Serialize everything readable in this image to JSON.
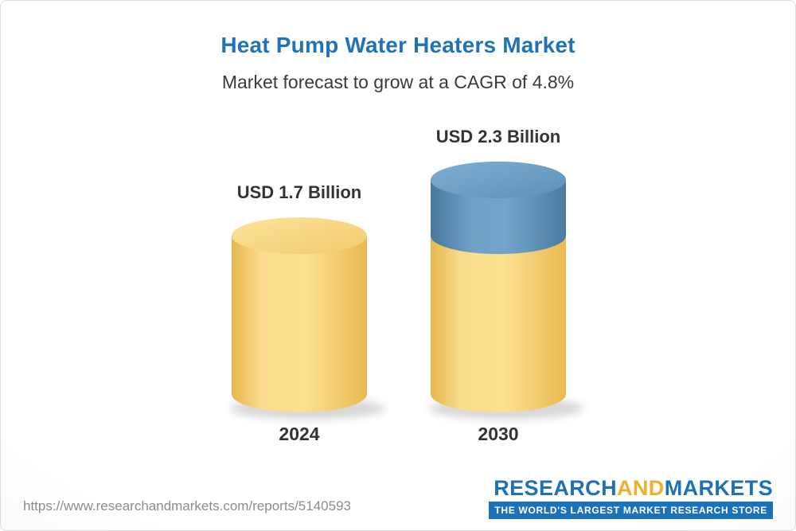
{
  "header": {
    "title": "Heat Pump Water Heaters Market",
    "subtitle": "Market forecast to grow at a CAGR of 4.8%"
  },
  "chart_data": {
    "type": "bar",
    "variant": "3d-cylinder-column",
    "title": "Heat Pump Water Heaters Market",
    "subtitle": "Market forecast to grow at a CAGR of 4.8%",
    "cagr_percent": 4.8,
    "unit": "USD Billion",
    "categories": [
      "2024",
      "2030"
    ],
    "values": [
      1.7,
      2.3
    ],
    "value_labels": [
      "USD 1.7 Billion",
      "USD 2.3 Billion"
    ],
    "segments": [
      [
        {
          "name": "market-size-2024",
          "value": 1.7,
          "color_key": "gold"
        }
      ],
      [
        {
          "name": "base-2024-level",
          "value": 1.7,
          "color_key": "gold"
        },
        {
          "name": "growth-to-2030",
          "value": 0.6,
          "color_key": "blue"
        }
      ]
    ],
    "colors": {
      "gold": "#F5CE63",
      "blue": "#5D90BA"
    },
    "ylim": [
      0,
      2.5
    ],
    "grid": false,
    "legend": false
  },
  "footer": {
    "report_url": "https://www.researchandmarkets.com/reports/5140593",
    "logo": {
      "word1": "RESEARCH",
      "word2": "AND",
      "word3": "MARKETS",
      "tagline": "THE WORLD'S LARGEST MARKET RESEARCH STORE"
    }
  }
}
